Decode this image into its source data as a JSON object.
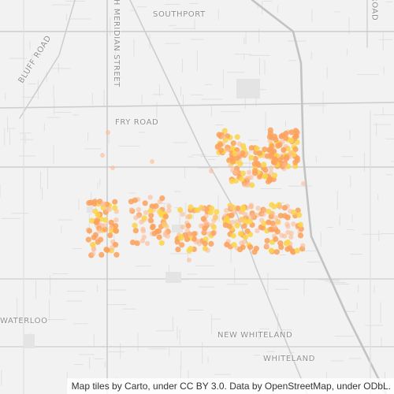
{
  "map": {
    "labels": {
      "southport": "SOUTHPORT",
      "bluff_road": "BLUFF ROAD",
      "south_meridian_street": "TH MERIDIAN STREET",
      "fry_road": "FRY ROAD",
      "top_right_road": "ROAD",
      "waterloo": "WATERLOO",
      "new_whiteland": "NEW WHITELAND",
      "whiteland": "WHITELAND"
    },
    "attribution": "Map tiles by Carto, under CC BY 3.0. Data by OpenStreetMap, under ODbL.",
    "colors": {
      "background": "#f2f2f2",
      "major_road": "#cdcdcd",
      "minor_road": "#e0e0e0",
      "label": "#8f8f8f",
      "heat_low": "#fdbb95",
      "heat_mid": "#fca15a",
      "heat_high": "#fcd54a"
    }
  }
}
